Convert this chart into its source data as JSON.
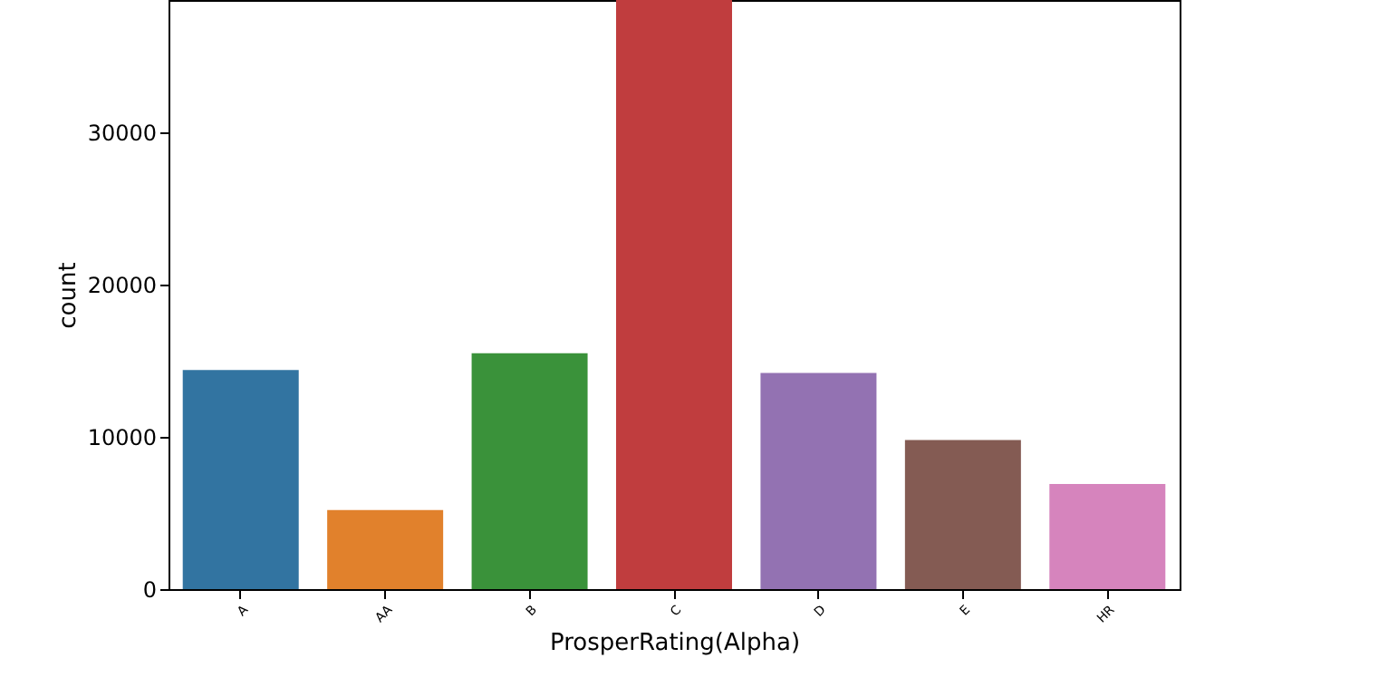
{
  "chart_data": {
    "type": "bar",
    "xlabel": "ProsperRating(Alpha)",
    "ylabel": "count",
    "categories": [
      "A",
      "AA",
      "B",
      "C",
      "D",
      "E",
      "HR"
    ],
    "values": [
      14400,
      5200,
      15500,
      38700,
      14200,
      9800,
      6900
    ],
    "colors": [
      "#3274a1",
      "#e1812c",
      "#3a923a",
      "#c03d3e",
      "#9372b2",
      "#845b53",
      "#d684bd"
    ],
    "ylim": [
      0,
      38700
    ],
    "yticks": [
      0,
      10000,
      20000,
      30000
    ],
    "grid": false
  }
}
